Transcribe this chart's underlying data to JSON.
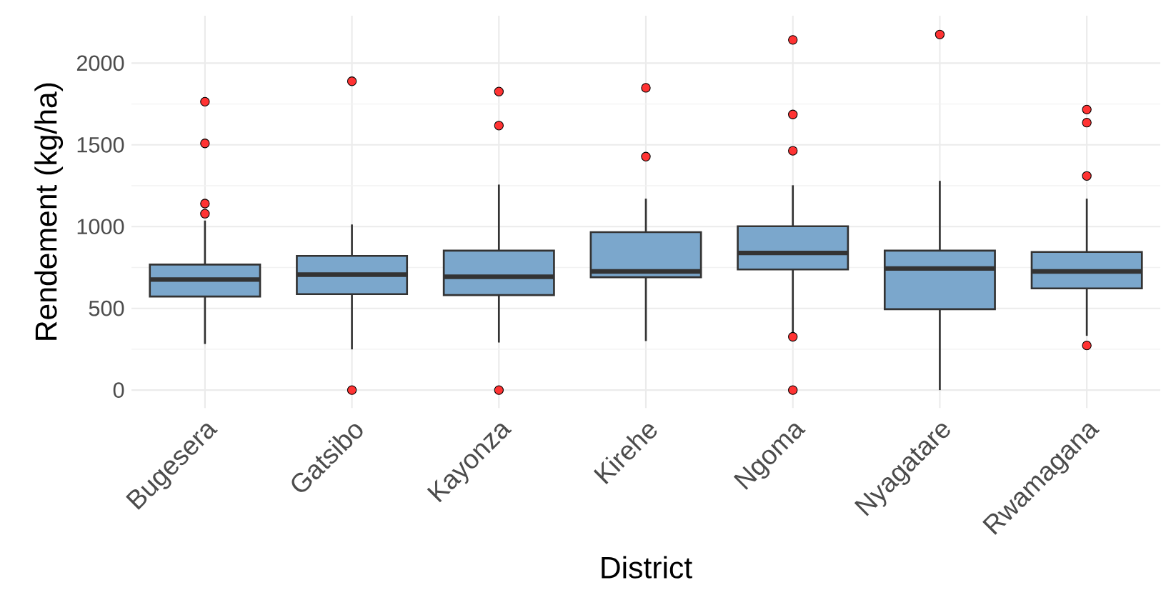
{
  "chart_data": {
    "type": "box",
    "xlabel": "District",
    "ylabel": "Rendement (kg/ha)",
    "categories": [
      "Bugesera",
      "Gatsibo",
      "Kayonza",
      "Kirehe",
      "Ngoma",
      "Nyagatare",
      "Rwamagana"
    ],
    "ylim": [
      -110,
      2290
    ],
    "yticks": [
      0,
      500,
      1000,
      1500,
      2000
    ],
    "grid": true,
    "series": [
      {
        "color": "#7ba7cc",
        "boxes": [
          {
            "low": 282,
            "q1": 572,
            "median": 676,
            "q3": 768,
            "high": 1037,
            "outliers": [
              1764,
              1509,
              1141,
              1079
            ]
          },
          {
            "low": 249,
            "q1": 587,
            "median": 706,
            "q3": 821,
            "high": 1013,
            "outliers": [
              1889,
              0
            ]
          },
          {
            "low": 291,
            "q1": 581,
            "median": 693,
            "q3": 853,
            "high": 1257,
            "outliers": [
              1826,
              1618,
              0
            ]
          },
          {
            "low": 300,
            "q1": 690,
            "median": 726,
            "q3": 966,
            "high": 1171,
            "outliers": [
              1849,
              1428
            ]
          },
          {
            "low": 345,
            "q1": 738,
            "median": 839,
            "q3": 1002,
            "high": 1253,
            "outliers": [
              2142,
              1686,
              1464,
              326,
              0
            ]
          },
          {
            "low": 0,
            "q1": 495,
            "median": 744,
            "q3": 853,
            "high": 1280,
            "outliers": [
              2175
            ]
          },
          {
            "low": 332,
            "q1": 622,
            "median": 726,
            "q3": 845,
            "high": 1171,
            "outliers": [
              1716,
              1636,
              1310,
              273
            ]
          }
        ]
      }
    ]
  }
}
